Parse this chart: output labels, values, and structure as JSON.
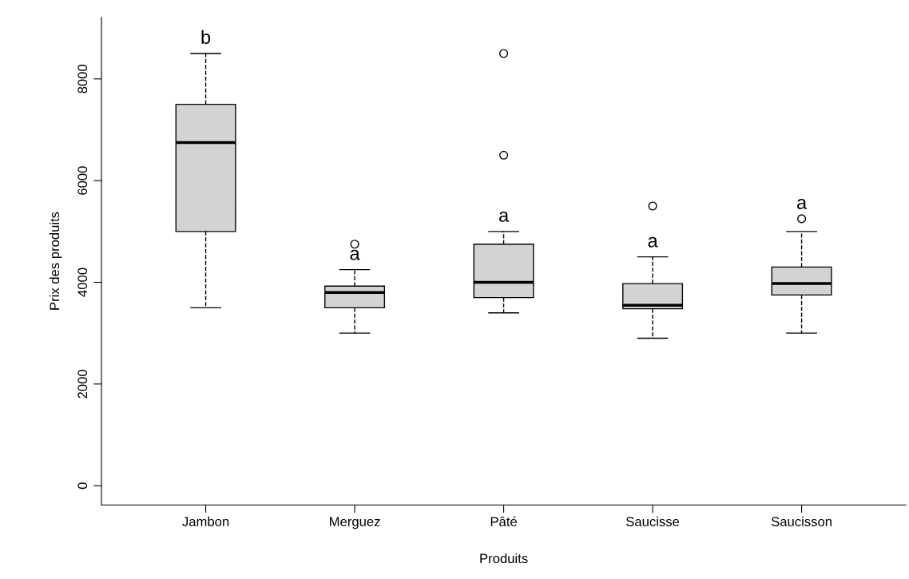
{
  "chart_data": {
    "type": "box",
    "xlabel": "Produits",
    "ylabel": "Prix des produits",
    "categories": [
      "Jambon",
      "Merguez",
      "Pâté",
      "Saucisse",
      "Saucisson"
    ],
    "color": "#d3d3d3",
    "boxes": [
      {
        "low": 3500,
        "q1": 5000,
        "median": 6750,
        "q3": 7500,
        "high": 8500
      },
      {
        "low": 3000,
        "q1": 3500,
        "median": 3800,
        "q3": 3925,
        "high": 4250,
        "outliers": [
          4750
        ]
      },
      {
        "low": 3400,
        "q1": 3700,
        "median": 4000,
        "q3": 4750,
        "high": 5000,
        "outliers": [
          8500,
          6500
        ]
      },
      {
        "low": 2900,
        "q1": 3480,
        "median": 3550,
        "q3": 3975,
        "high": 4500,
        "outliers": [
          5500
        ]
      },
      {
        "low": 3000,
        "q1": 3750,
        "median": 3975,
        "q3": 4300,
        "high": 5000,
        "outliers": [
          5250
        ]
      }
    ],
    "ylim": [
      -377,
      9210
    ],
    "yticks": [
      0,
      2000,
      4000,
      6000,
      8000
    ],
    "grid": false,
    "legend": false,
    "annotations": [
      "b",
      "a",
      "a",
      "a",
      "a"
    ]
  }
}
